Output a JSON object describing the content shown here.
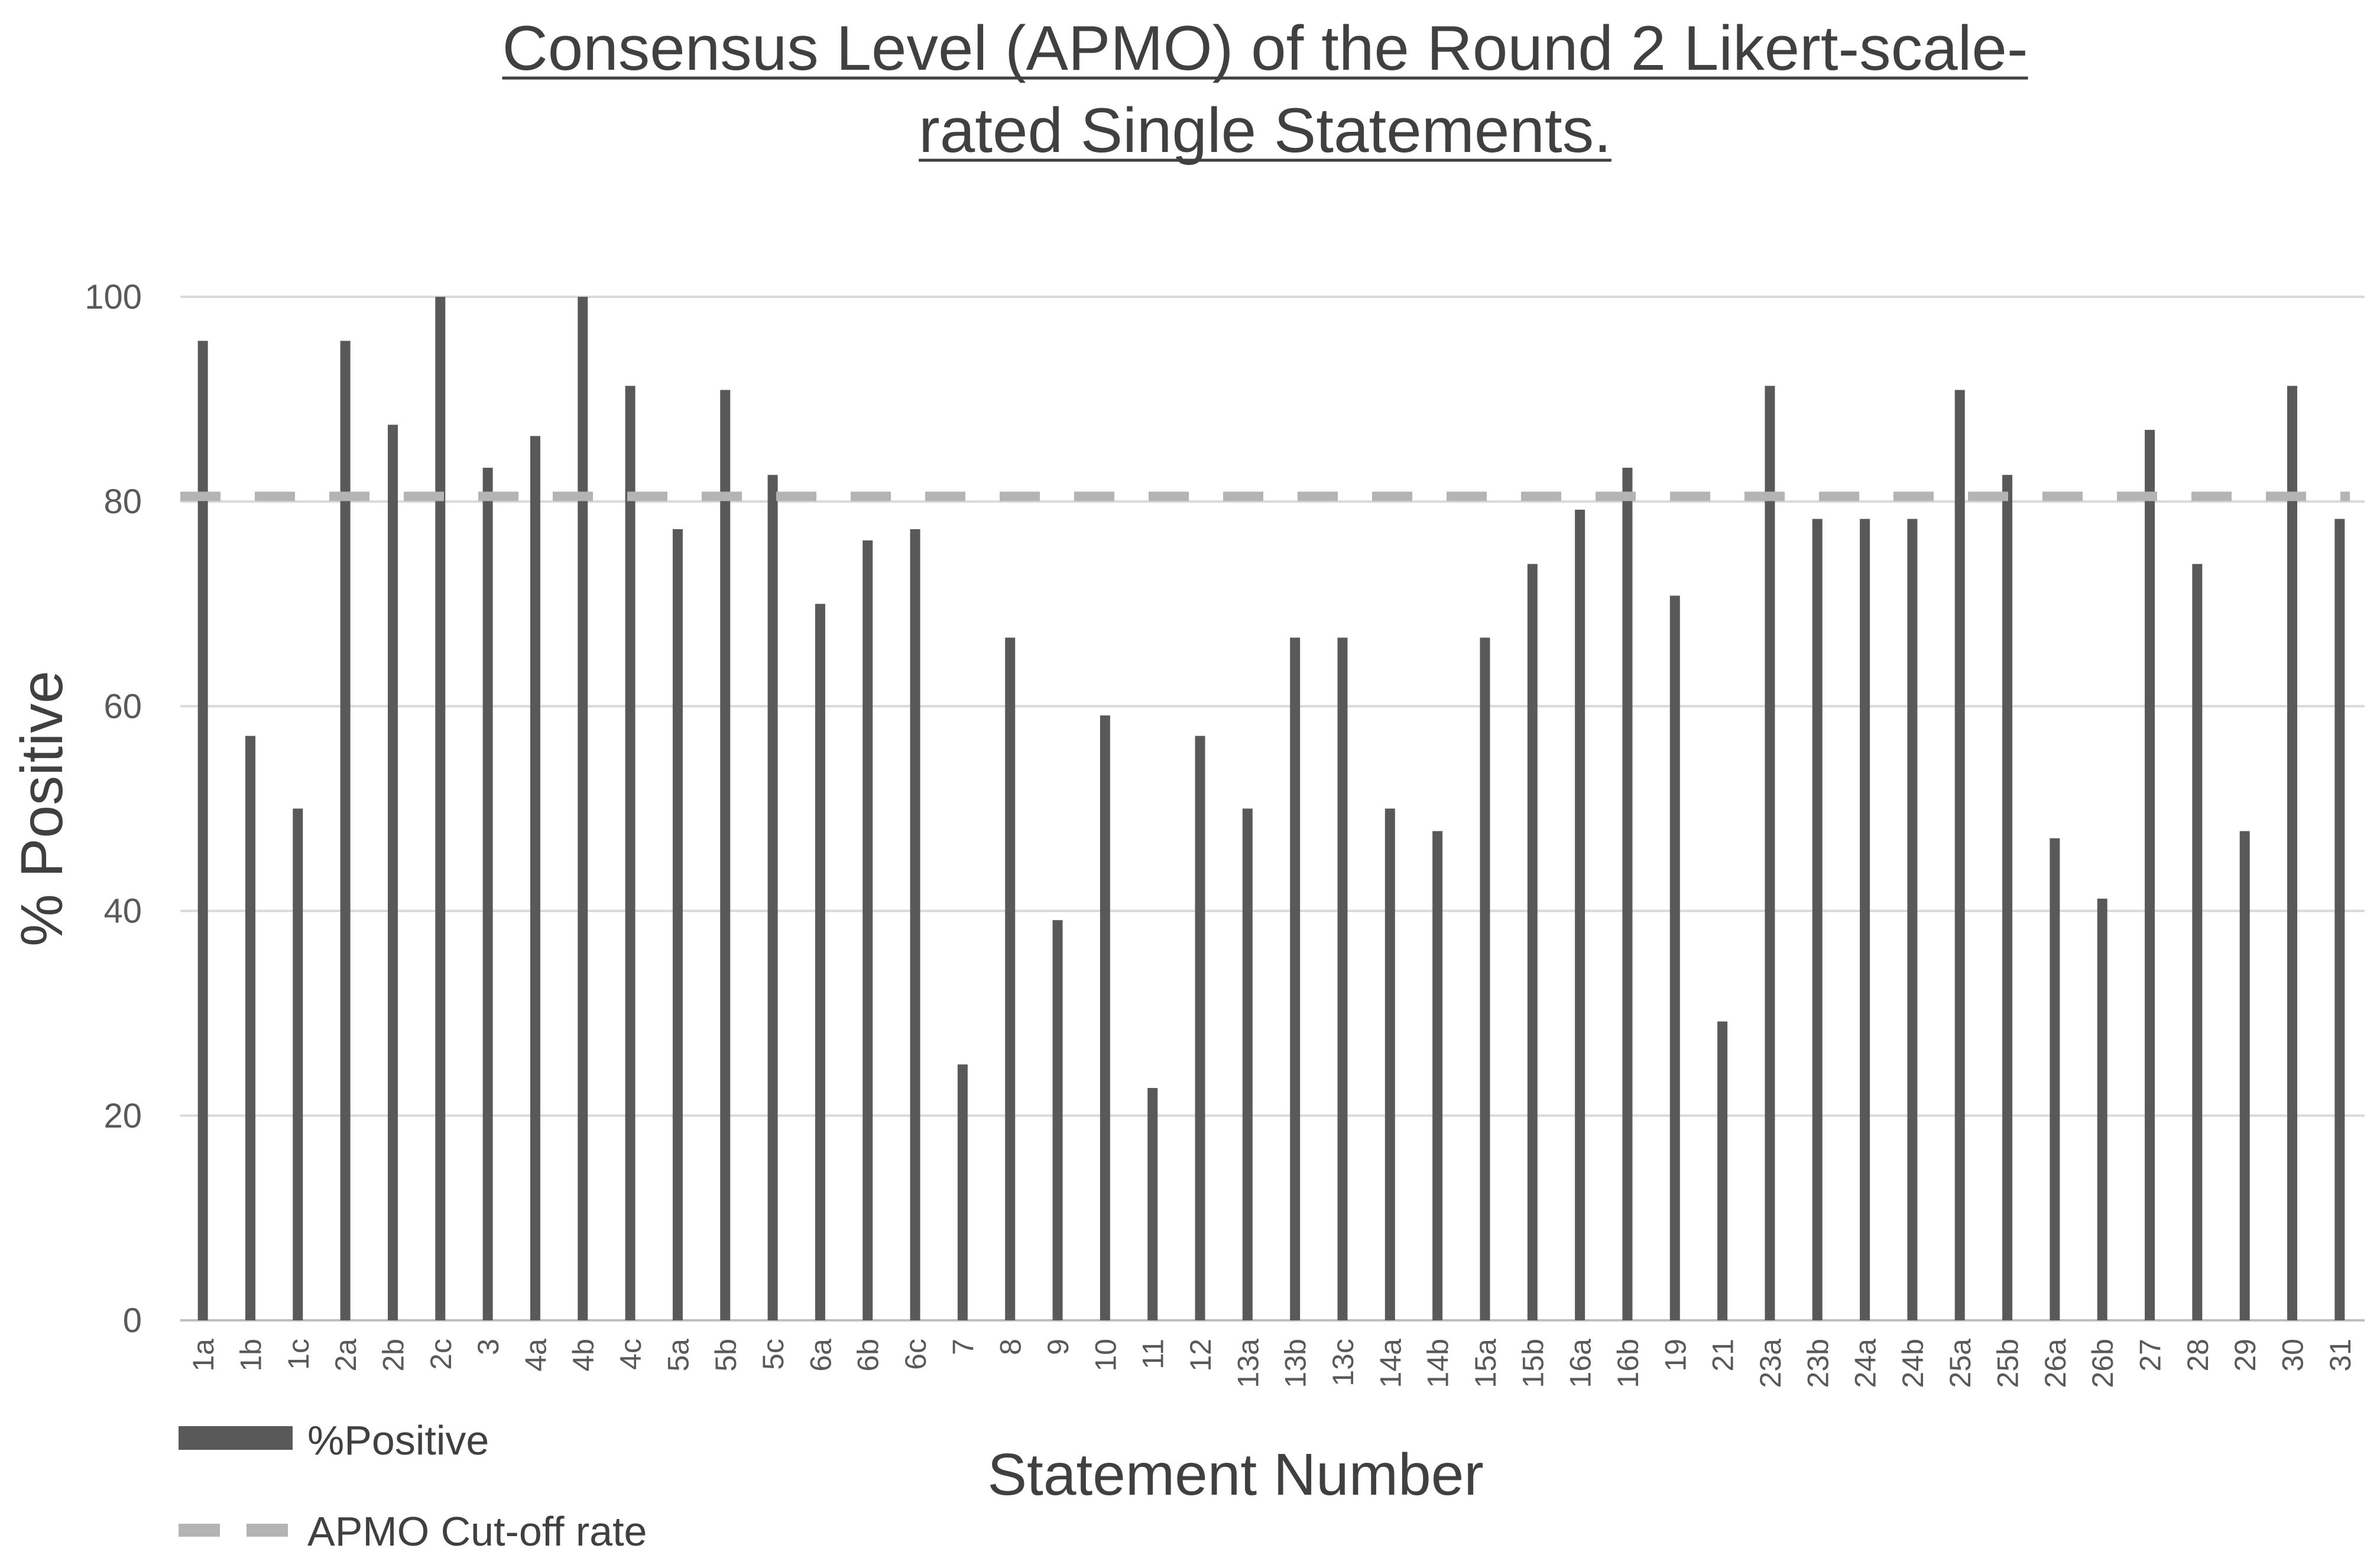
{
  "chart_data": {
    "type": "bar",
    "title_line1": "Consensus Level (APMO) of the Round 2 Likert-scale-",
    "title_line2": "rated Single Statements.",
    "xlabel": "Statement Number",
    "ylabel": "% Positive",
    "ylim": [
      0,
      100
    ],
    "yticks": [
      0,
      20,
      40,
      60,
      80,
      100
    ],
    "grid": true,
    "categories": [
      "1a",
      "1b",
      "1c",
      "2a",
      "2b",
      "2c",
      "3",
      "4a",
      "4b",
      "4c",
      "5a",
      "5b",
      "5c",
      "6a",
      "6b",
      "6c",
      "7",
      "8",
      "9",
      "10",
      "11",
      "12",
      "13a",
      "13b",
      "13c",
      "14a",
      "14b",
      "15a",
      "15b",
      "16a",
      "16b",
      "19",
      "21",
      "23a",
      "23b",
      "24a",
      "24b",
      "25a",
      "25b",
      "26a",
      "26b",
      "27",
      "28",
      "29",
      "30",
      "31"
    ],
    "series": [
      {
        "name": "%Positive",
        "color": "#595959",
        "values": [
          95.7,
          57.1,
          50,
          95.7,
          87.5,
          100,
          83.3,
          86.4,
          100,
          91.3,
          77.3,
          90.9,
          82.6,
          70,
          76.2,
          77.3,
          25,
          66.7,
          39.1,
          59.1,
          22.7,
          57.1,
          50,
          66.7,
          66.7,
          50,
          47.8,
          66.7,
          73.9,
          79.2,
          83.3,
          70.8,
          29.2,
          91.3,
          78.3,
          78.3,
          78.3,
          90.9,
          82.6,
          47.1,
          41.2,
          87,
          73.9,
          47.8,
          91.3,
          78.3
        ]
      }
    ],
    "cutoff": {
      "name": "APMO Cut-off rate",
      "value": 80.5,
      "color": "#b4b4b4",
      "style": "dashed"
    },
    "legend": {
      "position": "bottom-left"
    }
  }
}
